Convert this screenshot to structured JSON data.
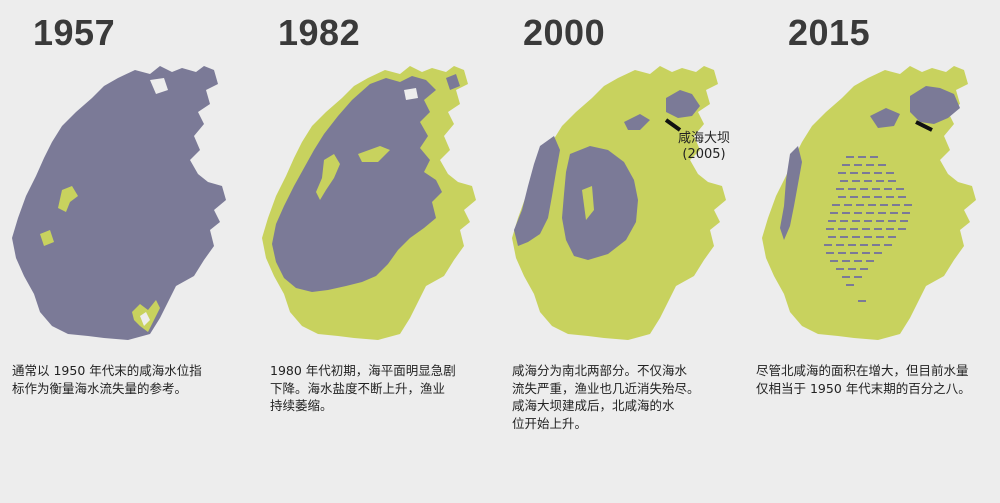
{
  "colors": {
    "water": "#7b7a97",
    "dry": "#c8d25e",
    "background": "#ededed",
    "dam": "#111111"
  },
  "panels": [
    {
      "year": "1957",
      "caption": "通常以 1950 年代末的咸海水位指\n标作为衡量海水流失量的参考。"
    },
    {
      "year": "1982",
      "caption": "1980 年代初期，海平面明显急剧\n下降。海水盐度不断上升，渔业\n持续萎缩。"
    },
    {
      "year": "2000",
      "caption": "咸海分为南北两部分。不仅海水\n流失严重，渔业也几近消失殆尽。\n咸海大坝建成后，北咸海的水\n位开始上升。",
      "dam_label": "咸海大坝",
      "dam_year": "(2005)"
    },
    {
      "year": "2015",
      "caption": "尽管北咸海的面积在增大，但目前水量\n仅相当于 1950 年代末期的百分之八。"
    }
  ]
}
